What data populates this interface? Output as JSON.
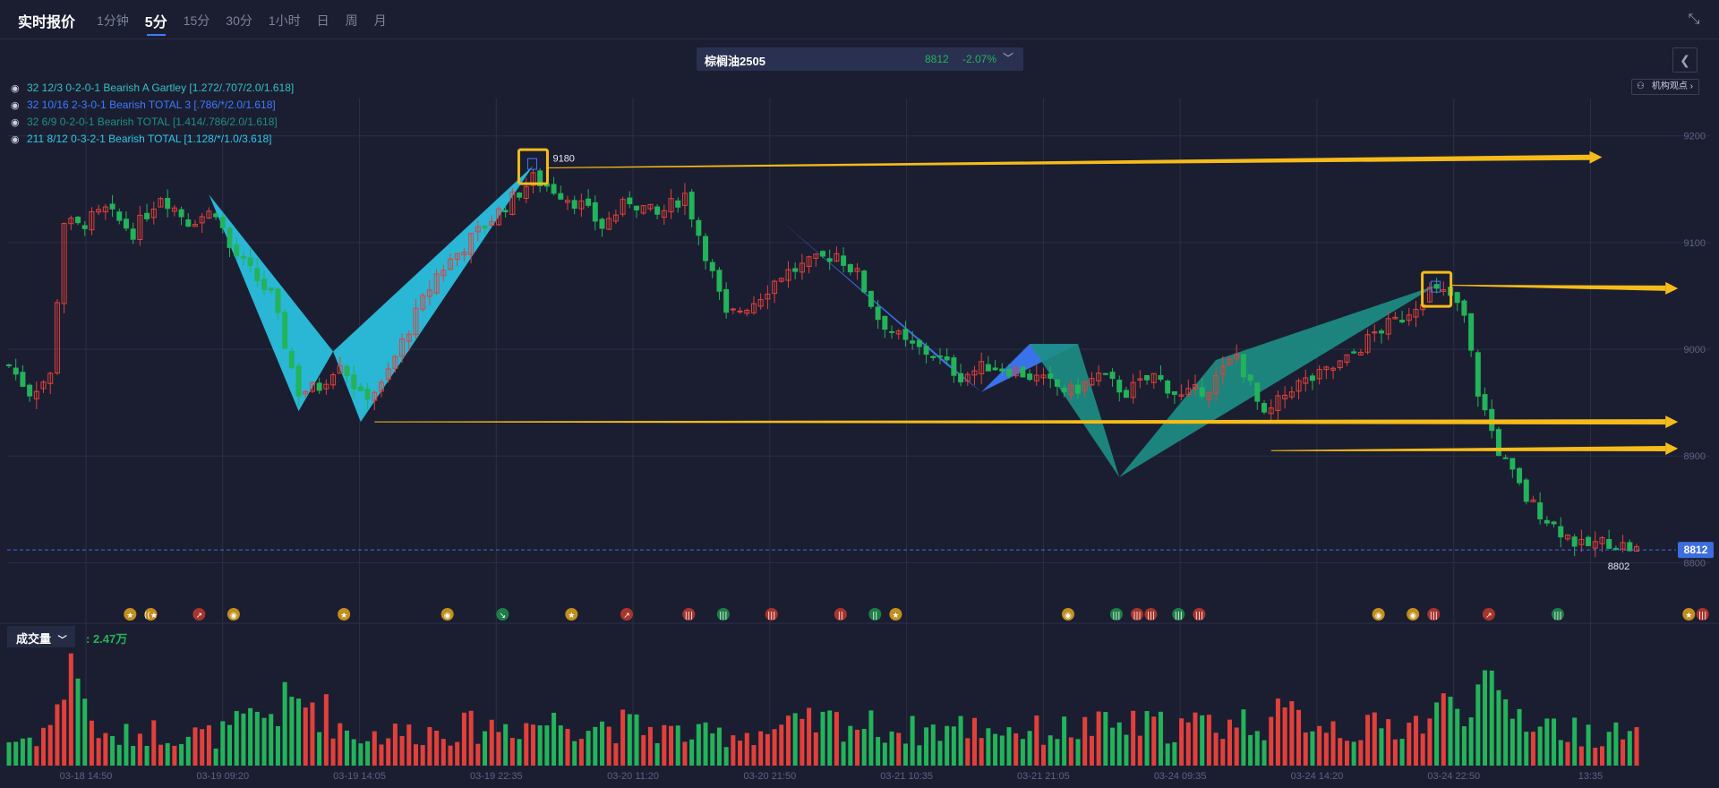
{
  "header": {
    "title": "实时报价",
    "tabs": [
      "1分钟",
      "5分",
      "15分",
      "30分",
      "1小时",
      "日",
      "周",
      "月"
    ],
    "active_tab": "5分"
  },
  "symbol": {
    "name": "棕榈油2505",
    "price": "8812",
    "change": "-2.07%"
  },
  "institution_label": "机构观点",
  "patterns": [
    {
      "text": "32 12/3 0-2-0-1 Bearish A Gartley [1.272/.707/2.0/1.618]",
      "color": "#34c0c0"
    },
    {
      "text": "32 10/16 2-3-0-1 Bearish TOTAL 3 [.786/*/2.0/1.618]",
      "color": "#3d7bff"
    },
    {
      "text": "32 6/9 0-2-0-1 Bearish TOTAL [1.414/.786/2.0/1.618]",
      "color": "#1d8f86"
    },
    {
      "text": "211 8/12 0-3-2-1 Bearish TOTAL [1.128/*/1.0/3.618]",
      "color": "#2cc7e8"
    }
  ],
  "volume": {
    "label": "成交量",
    "value": ": 2.47万"
  },
  "chart_data": {
    "type": "candlestick",
    "ylim": [
      8750,
      9235
    ],
    "y_ticks": [
      9200,
      9100,
      9000,
      8900,
      8800
    ],
    "x_tick_labels": [
      "03-18 14:50",
      "03-19 09:20",
      "03-19 14:05",
      "03-19 22:35",
      "03-20 11:20",
      "03-20 21:50",
      "03-21 10:35",
      "03-21 21:05",
      "03-24 09:35",
      "03-24 14:20",
      "03-24 22:50",
      "13:35"
    ],
    "last_price": "8812",
    "high_label": "9180",
    "low_label": "8802",
    "price_path": [
      [
        0,
        8985
      ],
      [
        3,
        8960
      ],
      [
        6,
        8975
      ],
      [
        8,
        9120
      ],
      [
        10,
        9115
      ],
      [
        14,
        9130
      ],
      [
        18,
        9110
      ],
      [
        22,
        9145
      ],
      [
        26,
        9120
      ],
      [
        30,
        9130
      ],
      [
        32,
        9095
      ],
      [
        38,
        9050
      ],
      [
        42,
        8960
      ],
      [
        45,
        8965
      ],
      [
        48,
        8990
      ],
      [
        51,
        8955
      ],
      [
        54,
        8965
      ],
      [
        58,
        9020
      ],
      [
        62,
        9070
      ],
      [
        68,
        9110
      ],
      [
        72,
        9135
      ],
      [
        76,
        9160
      ],
      [
        79,
        9150
      ],
      [
        83,
        9135
      ],
      [
        86,
        9115
      ],
      [
        90,
        9140
      ],
      [
        94,
        9125
      ],
      [
        98,
        9145
      ],
      [
        101,
        9090
      ],
      [
        104,
        9030
      ],
      [
        108,
        9045
      ],
      [
        112,
        9070
      ],
      [
        116,
        9080
      ],
      [
        120,
        9090
      ],
      [
        123,
        9070
      ],
      [
        126,
        9030
      ],
      [
        130,
        9005
      ],
      [
        134,
        8995
      ],
      [
        138,
        8975
      ],
      [
        142,
        8985
      ],
      [
        146,
        8980
      ],
      [
        150,
        8970
      ],
      [
        154,
        8960
      ],
      [
        158,
        8975
      ],
      [
        162,
        8960
      ],
      [
        166,
        8975
      ],
      [
        170,
        8955
      ],
      [
        174,
        8965
      ],
      [
        178,
        8995
      ],
      [
        182,
        8935
      ],
      [
        186,
        8965
      ],
      [
        190,
        8975
      ],
      [
        194,
        8990
      ],
      [
        198,
        9015
      ],
      [
        202,
        9030
      ],
      [
        206,
        9055
      ],
      [
        209,
        9050
      ],
      [
        211,
        9030
      ],
      [
        213,
        8960
      ],
      [
        216,
        8905
      ],
      [
        220,
        8860
      ],
      [
        224,
        8835
      ],
      [
        228,
        8815
      ],
      [
        232,
        8820
      ],
      [
        236,
        8812
      ]
    ],
    "volume_path": [
      [
        0,
        0.5
      ],
      [
        4,
        0.6
      ],
      [
        7,
        1.0
      ],
      [
        9,
        2.5
      ],
      [
        11,
        1.2
      ],
      [
        14,
        0.5
      ],
      [
        20,
        0.7
      ],
      [
        30,
        0.6
      ],
      [
        40,
        1.2
      ],
      [
        44,
        1.3
      ],
      [
        50,
        0.6
      ],
      [
        60,
        0.7
      ],
      [
        70,
        0.8
      ],
      [
        80,
        0.9
      ],
      [
        90,
        0.8
      ],
      [
        100,
        0.6
      ],
      [
        110,
        0.7
      ],
      [
        120,
        0.9
      ],
      [
        130,
        0.7
      ],
      [
        140,
        0.8
      ],
      [
        150,
        0.7
      ],
      [
        160,
        0.8
      ],
      [
        170,
        0.8
      ],
      [
        180,
        0.9
      ],
      [
        188,
        1.0
      ],
      [
        195,
        0.7
      ],
      [
        205,
        0.9
      ],
      [
        212,
        1.5
      ],
      [
        216,
        1.3
      ],
      [
        220,
        1.0
      ],
      [
        226,
        0.7
      ],
      [
        236,
        0.6
      ]
    ],
    "harmonic_patterns": [
      {
        "color": "#2cc7e8",
        "points": [
          [
            29,
            9145
          ],
          [
            42,
            8942
          ],
          [
            47,
            8998
          ],
          [
            51,
            8932
          ],
          [
            76,
            9172
          ]
        ]
      },
      {
        "color": "#3d7bff",
        "points": [
          [
            112,
            9120
          ],
          [
            136,
            8985
          ],
          [
            141,
            8960
          ],
          [
            148,
            9005
          ],
          [
            155,
            9005
          ]
        ]
      },
      {
        "color": "#1d8f86",
        "points": [
          [
            148,
            9005
          ],
          [
            155,
            9005
          ],
          [
            161,
            8880
          ],
          [
            175,
            8990
          ],
          [
            207,
            9060
          ]
        ]
      }
    ],
    "arrows": [
      {
        "from": [
          78,
          9170
        ],
        "to": [
          231,
          9180
        ]
      },
      {
        "from": [
          209,
          9060
        ],
        "to": [
          242,
          9057
        ]
      },
      {
        "from": [
          53,
          8932
        ],
        "to": [
          242,
          8932
        ]
      },
      {
        "from": [
          183,
          8905
        ],
        "to": [
          242,
          8907
        ]
      }
    ],
    "markers": [
      "★",
      "((★",
      "↗",
      "◉",
      "★",
      "◉",
      "↘",
      "★",
      "↗",
      "|||",
      "|||",
      "|||",
      "||",
      "||",
      "★",
      "◉",
      "|||",
      "|||",
      "|||",
      "|||",
      "|||",
      "◉",
      "◉",
      "|||",
      "↗",
      "|||",
      "★",
      "|||"
    ],
    "marker_positions": [
      9,
      12,
      19,
      24,
      40,
      55,
      63,
      73,
      81,
      90,
      95,
      102,
      112,
      117,
      120,
      145,
      152,
      155,
      157,
      161,
      164,
      190,
      195,
      198,
      206,
      216,
      235,
      237
    ]
  },
  "colors": {
    "background": "#1b1e31",
    "up": "#e2403a",
    "down": "#23b35a",
    "grid": "#2b2f46",
    "arrow": "#f6bb1a",
    "price_tag": "#3d6ee0"
  }
}
